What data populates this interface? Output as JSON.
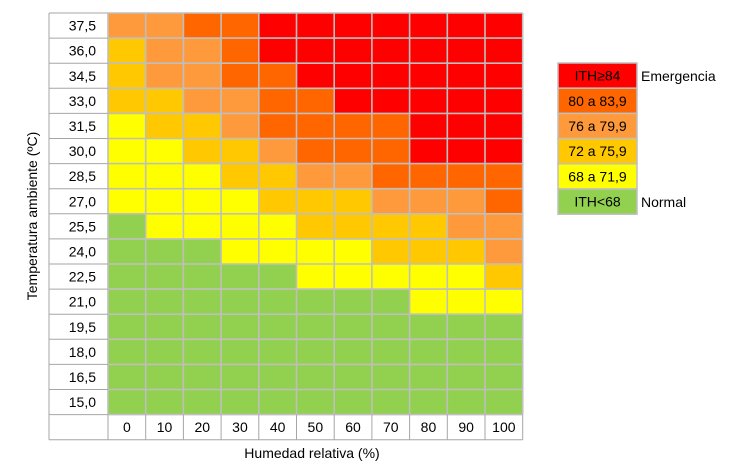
{
  "chart_data": {
    "type": "heatmap",
    "xlabel": "Humedad relativa (%)",
    "ylabel": "Temperatura ambiente (ºC)",
    "x": [
      "0",
      "10",
      "20",
      "30",
      "40",
      "50",
      "60",
      "70",
      "80",
      "90",
      "100"
    ],
    "y": [
      "37,5",
      "36,0",
      "34,5",
      "33,0",
      "31,5",
      "30,0",
      "28,5",
      "27,0",
      "25,5",
      "24,0",
      "22,5",
      "21,0",
      "19,5",
      "18,0",
      "16,5",
      "15,0"
    ],
    "categories": [
      "ITH≥84",
      "80 a 83,9",
      "76 a 79,9",
      "72 a 75,9",
      "68 a 71,9",
      "ITH<68"
    ],
    "colors": [
      "#ff0000",
      "#ff6600",
      "#ff9a3c",
      "#ffc800",
      "#ffff00",
      "#92d050"
    ],
    "cells": [
      [
        2,
        2,
        1,
        1,
        0,
        0,
        0,
        0,
        0,
        0,
        0
      ],
      [
        3,
        2,
        2,
        1,
        0,
        0,
        0,
        0,
        0,
        0,
        0
      ],
      [
        3,
        2,
        2,
        1,
        1,
        0,
        0,
        0,
        0,
        0,
        0
      ],
      [
        3,
        3,
        2,
        2,
        1,
        1,
        0,
        0,
        0,
        0,
        0
      ],
      [
        4,
        3,
        3,
        2,
        1,
        1,
        1,
        1,
        0,
        0,
        0
      ],
      [
        4,
        4,
        3,
        3,
        2,
        1,
        1,
        1,
        0,
        0,
        0
      ],
      [
        4,
        4,
        4,
        3,
        3,
        2,
        2,
        1,
        1,
        1,
        1
      ],
      [
        4,
        4,
        4,
        4,
        3,
        3,
        3,
        2,
        2,
        2,
        1
      ],
      [
        5,
        4,
        4,
        4,
        4,
        3,
        3,
        3,
        3,
        2,
        2
      ],
      [
        5,
        5,
        5,
        4,
        4,
        4,
        4,
        3,
        3,
        3,
        2
      ],
      [
        5,
        5,
        5,
        5,
        5,
        4,
        4,
        4,
        4,
        4,
        3
      ],
      [
        5,
        5,
        5,
        5,
        5,
        5,
        5,
        5,
        4,
        4,
        4
      ],
      [
        5,
        5,
        5,
        5,
        5,
        5,
        5,
        5,
        5,
        5,
        5
      ],
      [
        5,
        5,
        5,
        5,
        5,
        5,
        5,
        5,
        5,
        5,
        5
      ],
      [
        5,
        5,
        5,
        5,
        5,
        5,
        5,
        5,
        5,
        5,
        5
      ],
      [
        5,
        5,
        5,
        5,
        5,
        5,
        5,
        5,
        5,
        5,
        5
      ]
    ],
    "annotations": {
      "top": "Emergencia",
      "bottom": "Normal"
    },
    "legend_position": "right"
  }
}
